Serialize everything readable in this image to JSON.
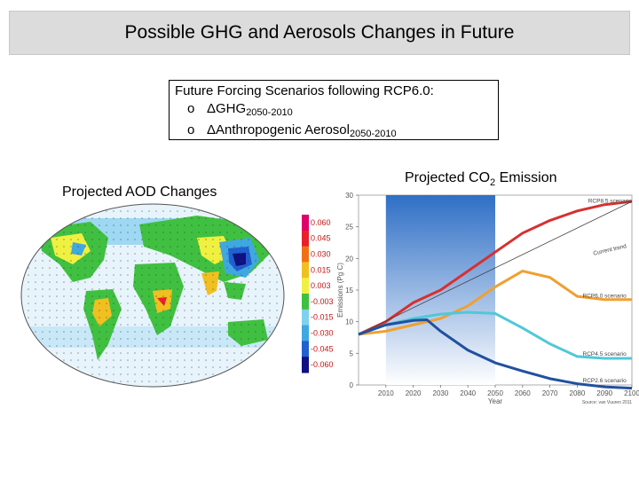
{
  "slide": {
    "title": "Possible GHG and Aerosols Changes in Future",
    "scenario_heading": "Future Forcing Scenarios following RCP6.0:",
    "bullet_glyph": "o",
    "items": [
      {
        "label": "ΔGHG",
        "sub": "2050-2010"
      },
      {
        "label": "ΔAnthropogenic Aerosol",
        "sub": "2050-2010"
      }
    ],
    "aod_title": "Projected AOD Changes",
    "co2_title_main": "Projected CO",
    "co2_title_sub": "2",
    "co2_title_end": " Emission"
  },
  "colorbar": {
    "labels": [
      "0.060",
      "0.045",
      "0.030",
      "0.015",
      "0.003",
      "-0.003",
      "-0.015",
      "-0.030",
      "-0.045",
      "-0.060"
    ],
    "colors": [
      "#e0006a",
      "#e8202a",
      "#f07018",
      "#f0c020",
      "#f0f040",
      "#40c040",
      "#80d0f0",
      "#40a8e0",
      "#2060d0",
      "#101080"
    ]
  },
  "chart_data": {
    "type": "line",
    "title": "",
    "xlabel": "Year",
    "ylabel": "Emissions (Pg C)",
    "xlim": [
      2000,
      2100
    ],
    "ylim": [
      0,
      30
    ],
    "xticks": [
      2010,
      2020,
      2030,
      2040,
      2050,
      2060,
      2070,
      2080,
      2090,
      2100
    ],
    "yticks": [
      0,
      5,
      10,
      15,
      20,
      25,
      30
    ],
    "highlight_range": [
      2010,
      2050
    ],
    "source": "Source: van Vuuren 2011",
    "series": [
      {
        "name": "RCP8.5 scenario",
        "color": "#d83030",
        "x": [
          2000,
          2010,
          2020,
          2030,
          2040,
          2050,
          2060,
          2070,
          2080,
          2090,
          2100
        ],
        "y": [
          8,
          10,
          13,
          15,
          18,
          21,
          24,
          26,
          27.5,
          28.5,
          29
        ]
      },
      {
        "name": "Current trend",
        "color": "#404040",
        "x": [
          2000,
          2100
        ],
        "y": [
          8,
          29
        ]
      },
      {
        "name": "RCP6.0 scenario",
        "color": "#f0a030",
        "x": [
          2000,
          2010,
          2020,
          2030,
          2040,
          2050,
          2060,
          2070,
          2080,
          2090,
          2100
        ],
        "y": [
          8,
          8.5,
          9.5,
          10.5,
          12.5,
          15.5,
          18,
          17,
          14,
          13.5,
          13.5
        ]
      },
      {
        "name": "RCP4.5 scenario",
        "color": "#50c8d8",
        "x": [
          2000,
          2010,
          2020,
          2030,
          2040,
          2050,
          2060,
          2070,
          2080,
          2090,
          2100
        ],
        "y": [
          8,
          9.5,
          10.5,
          11.2,
          11.5,
          11.3,
          9,
          6.5,
          4.5,
          4.2,
          4.2
        ]
      },
      {
        "name": "RCP2.6 scenario",
        "color": "#2050a0",
        "x": [
          2000,
          2010,
          2020,
          2025,
          2030,
          2040,
          2050,
          2060,
          2070,
          2080,
          2090,
          2100
        ],
        "y": [
          8,
          9.5,
          10.2,
          10.3,
          8.5,
          5.5,
          3.5,
          2.2,
          1,
          0.2,
          -0.3,
          -0.5
        ]
      }
    ]
  }
}
